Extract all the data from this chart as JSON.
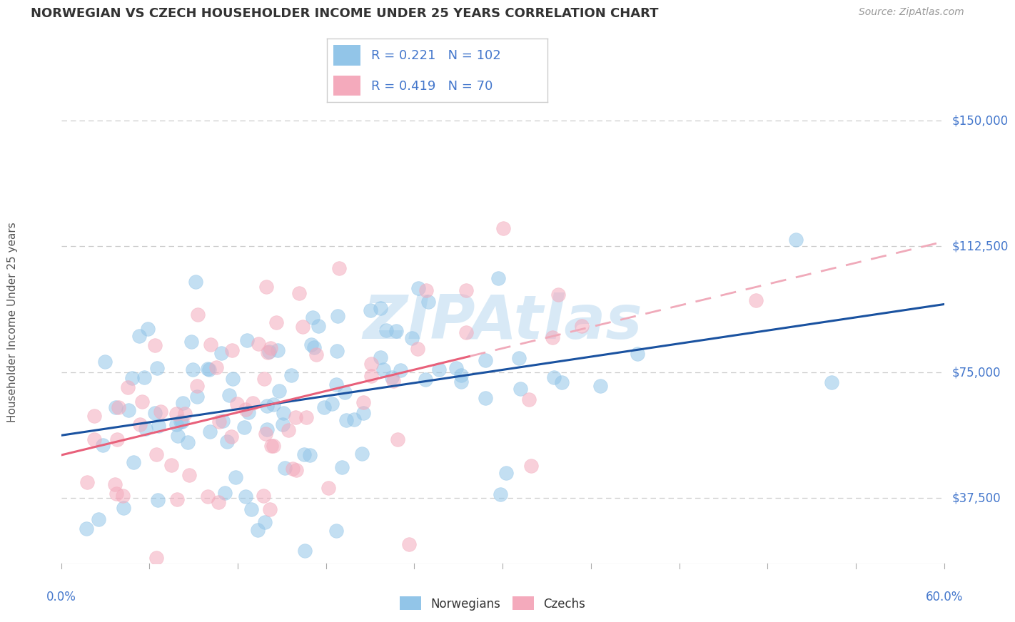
{
  "title": "NORWEGIAN VS CZECH HOUSEHOLDER INCOME UNDER 25 YEARS CORRELATION CHART",
  "source": "Source: ZipAtlas.com",
  "ylabel": "Householder Income Under 25 years",
  "xlim": [
    0.0,
    0.6
  ],
  "ylim": [
    18000,
    162000
  ],
  "yticks": [
    37500,
    75000,
    112500,
    150000
  ],
  "ytick_labels": [
    "$37,500",
    "$75,000",
    "$112,500",
    "$150,000"
  ],
  "xtick_left_label": "0.0%",
  "xtick_right_label": "60.0%",
  "norwegian_R": 0.221,
  "norwegian_N": 102,
  "czech_R": 0.419,
  "czech_N": 70,
  "norwegian_color": "#92C5E8",
  "czech_color": "#F4AABC",
  "trend_norwegian_color": "#1A52A0",
  "trend_czech_solid_color": "#E8607A",
  "trend_czech_dashed_color": "#F0AABA",
  "watermark_color": "#B8D8F0",
  "background_color": "#ffffff",
  "grid_color": "#CCCCCC",
  "axis_color": "#AAAAAA",
  "label_color": "#4477CC",
  "tick_label_color": "#4477CC",
  "title_color": "#333333",
  "source_color": "#999999",
  "ylabel_color": "#555555"
}
